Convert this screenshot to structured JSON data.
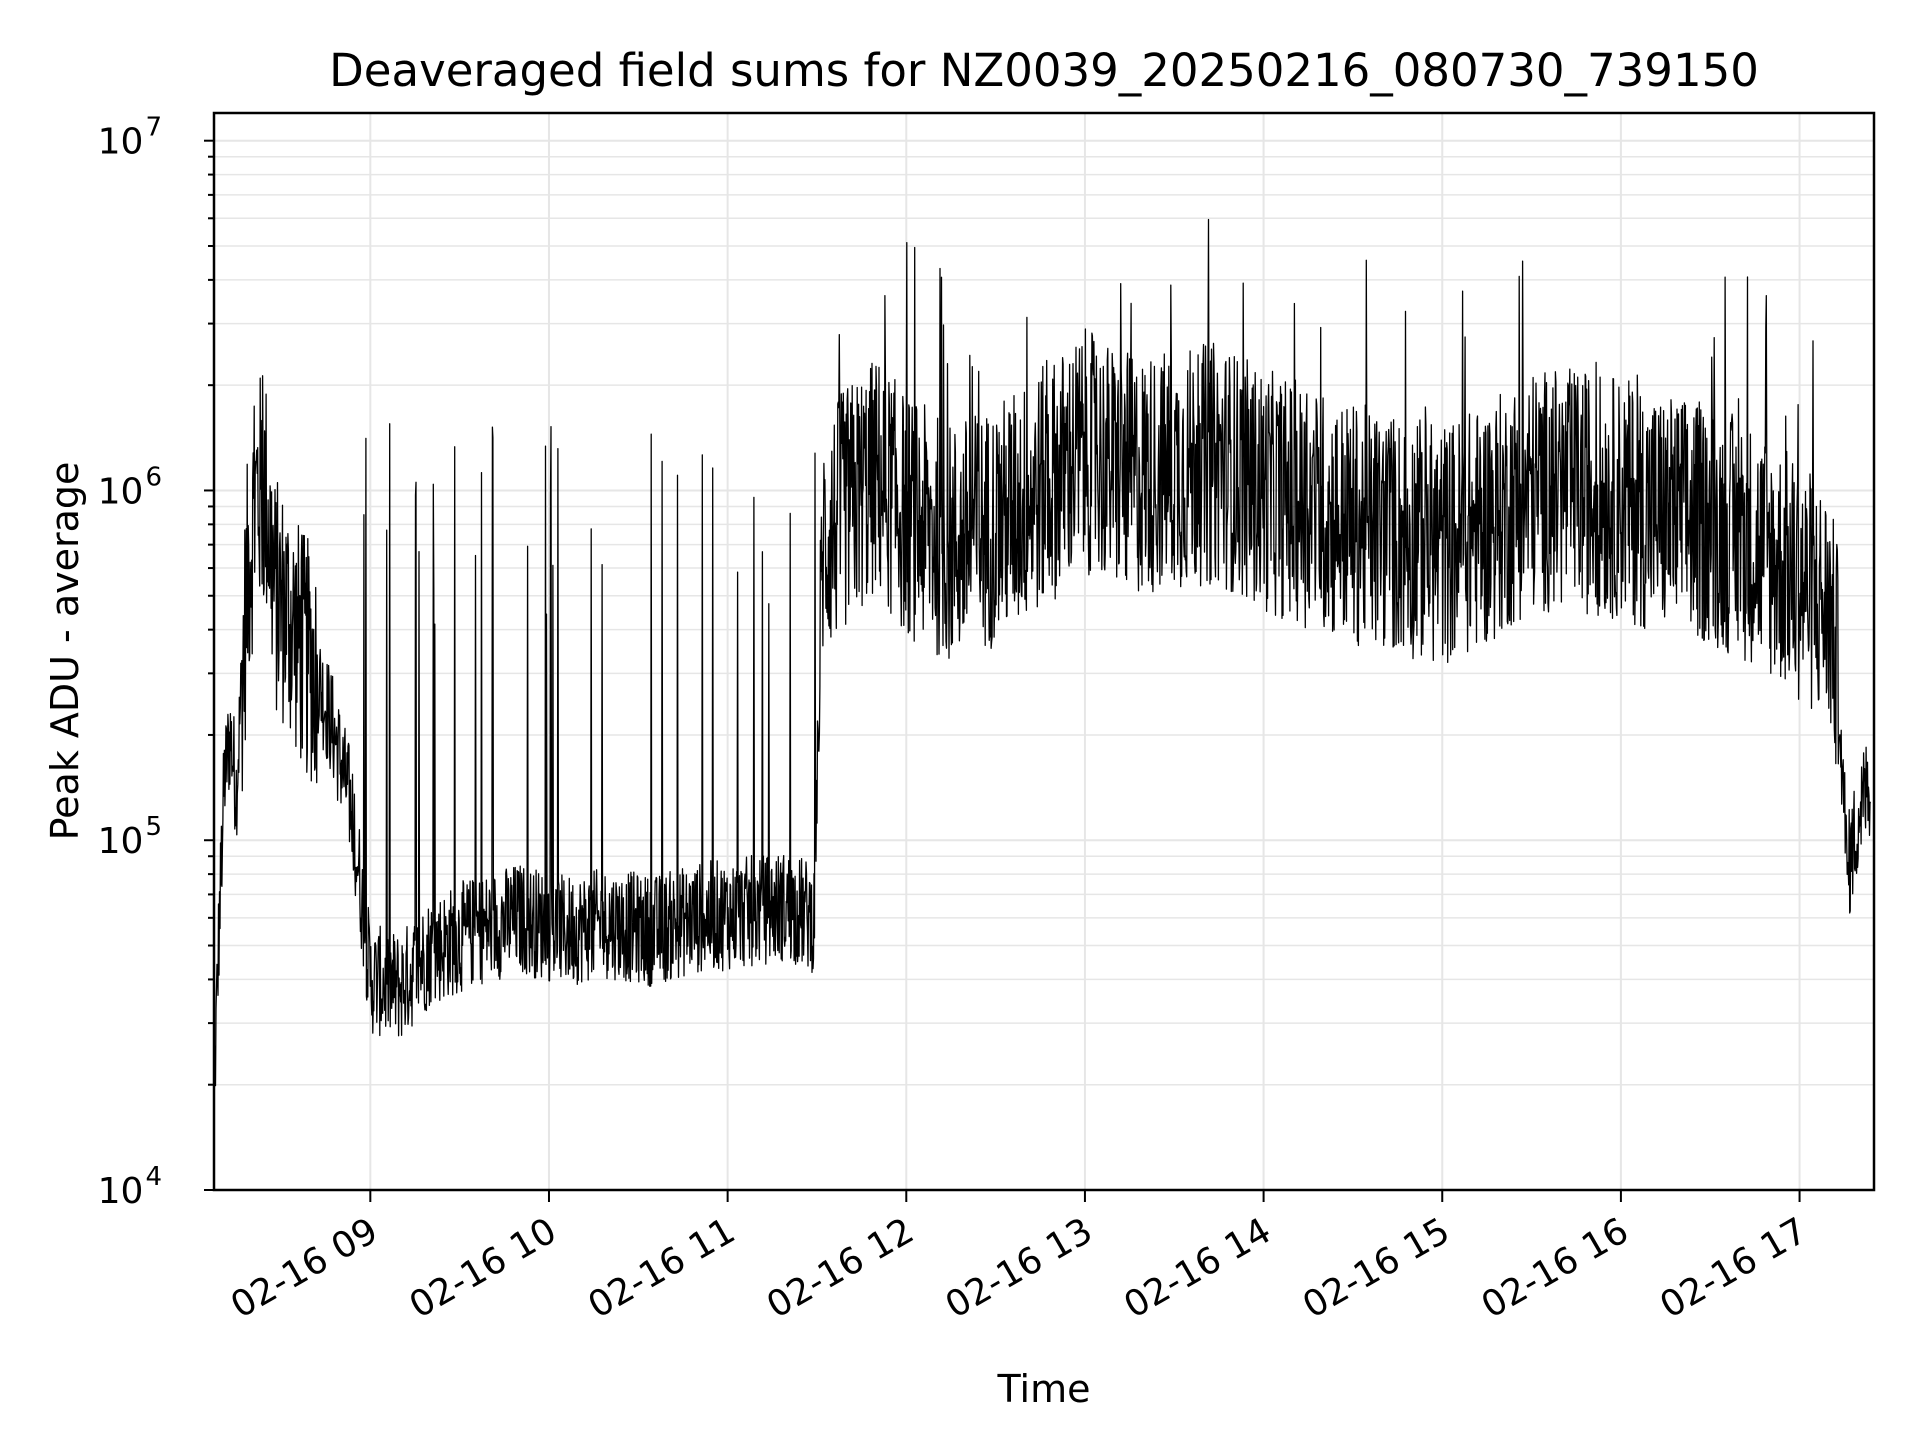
{
  "chart_data": {
    "type": "line",
    "title": "Deaveraged field sums for NZ0039_20250216_080730_739150",
    "xlabel": "Time",
    "ylabel": "Peak ADU - average",
    "yscale": "log",
    "ylim": [
      10000,
      12000000
    ],
    "xlim": [
      "2025-02-16 08:07:30",
      "2025-02-16 17:25:00"
    ],
    "grid": true,
    "legend": "none",
    "line_color": "#000000",
    "x_ticks": [
      {
        "value": "2025-02-16 09:00",
        "label": "02-16 09"
      },
      {
        "value": "2025-02-16 10:00",
        "label": "02-16 10"
      },
      {
        "value": "2025-02-16 11:00",
        "label": "02-16 11"
      },
      {
        "value": "2025-02-16 12:00",
        "label": "02-16 12"
      },
      {
        "value": "2025-02-16 13:00",
        "label": "02-16 13"
      },
      {
        "value": "2025-02-16 14:00",
        "label": "02-16 14"
      },
      {
        "value": "2025-02-16 15:00",
        "label": "02-16 15"
      },
      {
        "value": "2025-02-16 16:00",
        "label": "02-16 16"
      },
      {
        "value": "2025-02-16 17:00",
        "label": "02-16 17"
      }
    ],
    "y_ticks": [
      {
        "value": 10000,
        "base": "10",
        "exp": "4"
      },
      {
        "value": 100000,
        "base": "10",
        "exp": "5"
      },
      {
        "value": 1000000,
        "base": "10",
        "exp": "6"
      },
      {
        "value": 10000000,
        "base": "10",
        "exp": "7"
      }
    ],
    "series": [
      {
        "x": [
          "2025-02-16 08:07:30",
          "2025-02-16 08:09",
          "2025-02-16 08:11",
          "2025-02-16 08:13",
          "2025-02-16 08:15",
          "2025-02-16 08:17",
          "2025-02-16 08:19",
          "2025-02-16 08:22",
          "2025-02-16 08:25",
          "2025-02-16 08:28",
          "2025-02-16 08:32",
          "2025-02-16 08:37",
          "2025-02-16 08:42",
          "2025-02-16 08:48",
          "2025-02-16 08:54",
          "2025-02-16 09:00",
          "2025-02-16 09:10",
          "2025-02-16 09:20",
          "2025-02-16 09:35",
          "2025-02-16 09:50",
          "2025-02-16 10:05",
          "2025-02-16 10:20",
          "2025-02-16 10:35",
          "2025-02-16 10:50",
          "2025-02-16 11:05",
          "2025-02-16 11:20",
          "2025-02-16 11:29",
          "2025-02-16 11:32",
          "2025-02-16 11:40",
          "2025-02-16 11:50",
          "2025-02-16 12:00",
          "2025-02-16 12:15",
          "2025-02-16 12:30",
          "2025-02-16 12:45",
          "2025-02-16 13:00",
          "2025-02-16 13:15",
          "2025-02-16 13:30",
          "2025-02-16 13:45",
          "2025-02-16 14:00",
          "2025-02-16 14:15",
          "2025-02-16 14:30",
          "2025-02-16 14:45",
          "2025-02-16 15:00",
          "2025-02-16 15:15",
          "2025-02-16 15:30",
          "2025-02-16 15:45",
          "2025-02-16 16:00",
          "2025-02-16 16:15",
          "2025-02-16 16:30",
          "2025-02-16 16:45",
          "2025-02-16 17:00",
          "2025-02-16 17:05",
          "2025-02-16 17:10",
          "2025-02-16 17:13",
          "2025-02-16 17:16",
          "2025-02-16 17:20",
          "2025-02-16 17:24"
        ],
        "y": [
          18000,
          50000,
          150000,
          200000,
          140000,
          300000,
          600000,
          1000000,
          950000,
          500000,
          450000,
          350000,
          300000,
          200000,
          120000,
          40000,
          38000,
          48000,
          55000,
          60000,
          55000,
          58000,
          55000,
          60000,
          62000,
          65000,
          60000,
          700000,
          900000,
          1100000,
          850000,
          700000,
          800000,
          1000000,
          1300000,
          1100000,
          1150000,
          1200000,
          1000000,
          900000,
          800000,
          750000,
          700000,
          800000,
          1000000,
          1000000,
          950000,
          850000,
          800000,
          700000,
          550000,
          500000,
          450000,
          300000,
          80000,
          120000,
          150000
        ]
      }
    ]
  }
}
